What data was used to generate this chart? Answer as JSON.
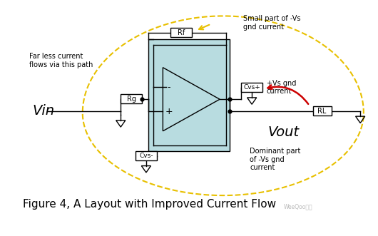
{
  "title": "Figure 4, A Layout with Improved Current Flow",
  "title_fontsize": 11,
  "bg_color": "#ffffff",
  "fig_width": 5.3,
  "fig_height": 3.31,
  "dpi": 100,
  "opamp_fill": "#b8dce0",
  "opamp_outline": "#000000",
  "component_box_color": "#000000",
  "component_box_fill": "#ffffff",
  "wire_color": "#000000",
  "dashed_color": "#e8c000",
  "arrow_red": "#cc0000",
  "text_label_color": "#000000",
  "watermark": "WeeQoo维库",
  "vin_label": "Vin",
  "vout_label": "Vout",
  "text_small_part": "Small part of -Vs\ngnd current",
  "text_plus_vs": "+Vs gnd\ncurrent",
  "text_dominant": "Dominant part\nof -Vs gnd\ncurrent",
  "text_far_less": "Far less current\nflows via this path"
}
